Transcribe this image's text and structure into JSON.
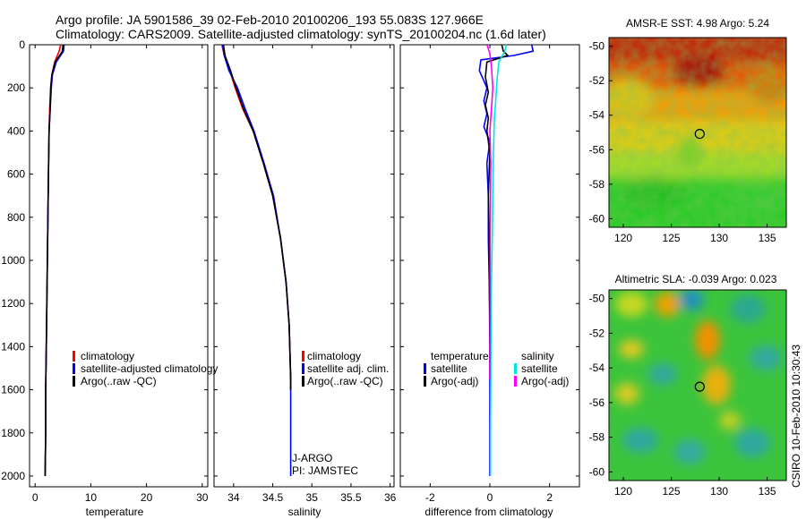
{
  "header": {
    "line1": "Argo profile: JA 5901586_39 02-Feb-2010 20100206_193 55.083S 127.966E",
    "line2": "Climatology: CARS2009. Satellite-adjusted climatology: synTS_20100204.nc (1.6d later)"
  },
  "side_stamp": "CSIRO 10-Feb-2010 10:30:43",
  "colors": {
    "climatology": "#ff0000",
    "satellite": "#0000ff",
    "argo": "#000000",
    "sal_satellite": "#00e5e5",
    "sal_argo": "#ff00ff"
  },
  "chart_data": [
    {
      "type": "line",
      "id": "temperature",
      "xlabel": "temperature",
      "xlim": [
        -1,
        31
      ],
      "ylim": [
        2050,
        0
      ],
      "xticks": [
        0,
        10,
        20,
        30
      ],
      "yticks": [
        0,
        200,
        400,
        600,
        800,
        1000,
        1200,
        1400,
        1600,
        1800,
        2000
      ],
      "legend": [
        "climatology",
        "satellite-adjusted climatology",
        "Argo(..raw -QC)"
      ],
      "series": [
        {
          "name": "climatology",
          "color": "#ff0000",
          "x": [
            4.6,
            4.3,
            3.5,
            3.0,
            2.8,
            2.6,
            2.5,
            2.4,
            2.3,
            2.2,
            2.1,
            2.0,
            1.9,
            1.9,
            1.8
          ],
          "y": [
            0,
            30,
            80,
            140,
            200,
            300,
            400,
            600,
            800,
            1000,
            1200,
            1400,
            1600,
            1800,
            2000
          ]
        },
        {
          "name": "satellite-adjusted climatology",
          "color": "#0000ff",
          "x": [
            5.2,
            5.1,
            3.8,
            3.1,
            2.9,
            2.7,
            2.5,
            2.4,
            2.3,
            2.2,
            2.1,
            2.0,
            1.9,
            1.9,
            1.8
          ],
          "y": [
            0,
            30,
            80,
            140,
            200,
            300,
            400,
            600,
            800,
            1000,
            1200,
            1400,
            1600,
            1800,
            2000
          ]
        },
        {
          "name": "Argo(..raw -QC)",
          "color": "#000000",
          "x": [
            5.0,
            4.9,
            3.6,
            3.0,
            2.8,
            2.7,
            2.5,
            2.4,
            2.3,
            2.2,
            2.1,
            2.0,
            1.9,
            1.9,
            1.8
          ],
          "y": [
            0,
            30,
            80,
            140,
            200,
            300,
            400,
            600,
            800,
            1000,
            1200,
            1400,
            1600,
            1800,
            2000
          ]
        }
      ]
    },
    {
      "type": "line",
      "id": "salinity",
      "xlabel": "salinity",
      "xlim": [
        33.75,
        36.05
      ],
      "ylim": [
        2050,
        0
      ],
      "xticks": [
        34,
        34.5,
        35,
        35.5,
        36
      ],
      "legend": [
        "climatology",
        "satellite adj. clim.",
        "Argo(..raw -QC)"
      ],
      "annotation": [
        "J-ARGO",
        "PI: JAMSTEC"
      ],
      "series": [
        {
          "name": "climatology",
          "color": "#ff0000",
          "x": [
            33.85,
            33.88,
            33.95,
            34.02,
            34.12,
            34.25,
            34.38,
            34.5,
            34.6,
            34.67,
            34.71,
            34.73,
            34.73
          ],
          "y": [
            0,
            50,
            120,
            200,
            300,
            400,
            550,
            700,
            900,
            1100,
            1300,
            1550,
            1600
          ]
        },
        {
          "name": "satellite adj. clim.",
          "color": "#0000ff",
          "x": [
            33.86,
            33.88,
            33.94,
            34.05,
            34.15,
            34.26,
            34.39,
            34.51,
            34.6,
            34.67,
            34.71,
            34.73,
            34.73,
            34.73
          ],
          "y": [
            0,
            50,
            120,
            200,
            300,
            400,
            550,
            700,
            900,
            1100,
            1300,
            1550,
            1800,
            2000
          ]
        },
        {
          "name": "Argo(..raw -QC)",
          "color": "#000000",
          "x": [
            33.87,
            33.89,
            33.96,
            34.03,
            34.13,
            34.25,
            34.38,
            34.5,
            34.6,
            34.67,
            34.71,
            34.73,
            34.73
          ],
          "y": [
            0,
            50,
            120,
            200,
            300,
            400,
            550,
            700,
            900,
            1100,
            1300,
            1550,
            1600
          ]
        }
      ]
    },
    {
      "type": "line",
      "id": "difference",
      "xlabel": "difference from climatology",
      "xlim": [
        -3,
        3
      ],
      "ylim": [
        2050,
        0
      ],
      "xticks": [
        -2,
        0,
        2
      ],
      "legend_left_title": "temperature",
      "legend_left": [
        "satellite",
        "Argo(-adj)"
      ],
      "legend_right_title": "salinity",
      "legend_right": [
        "satellite",
        "Argo(-adj)"
      ],
      "series": [
        {
          "name": "temperature satellite",
          "color": "#0000ff",
          "x": [
            1.4,
            1.45,
            0.8,
            -0.3,
            -0.35,
            -0.1,
            -0.2,
            -0.1,
            -0.2,
            0.0,
            -0.1,
            -0.05,
            -0.05,
            -0.02,
            0.0,
            0.0,
            0.0
          ],
          "y": [
            0,
            30,
            50,
            70,
            120,
            200,
            260,
            320,
            380,
            450,
            550,
            700,
            900,
            1100,
            1400,
            1700,
            2000
          ]
        },
        {
          "name": "temperature Argo(-adj)",
          "color": "#000000",
          "x": [
            0.4,
            0.45,
            0.6,
            -0.1,
            -0.15,
            -0.05,
            -0.15,
            -0.05,
            -0.1,
            0.0,
            -0.05,
            -0.02,
            0.0,
            0.0
          ],
          "y": [
            0,
            30,
            50,
            80,
            150,
            220,
            280,
            340,
            400,
            500,
            700,
            1000,
            1300,
            1550
          ]
        },
        {
          "name": "salinity satellite",
          "color": "#00e5e5",
          "x": [
            0.55,
            0.5,
            0.3,
            0.25,
            0.2,
            0.15,
            0.12,
            0.1,
            0.08,
            0.05,
            0.04,
            0.03,
            0.02,
            0.02
          ],
          "y": [
            0,
            30,
            80,
            150,
            250,
            350,
            500,
            700,
            900,
            1100,
            1300,
            1550,
            1800,
            2000
          ]
        },
        {
          "name": "salinity Argo(-adj)",
          "color": "#ff00ff",
          "x": [
            -0.1,
            0.0,
            0.05,
            0.1,
            0.05,
            0.0,
            0.03,
            0.02,
            0.01,
            0.01,
            0.0
          ],
          "y": [
            0,
            40,
            100,
            200,
            300,
            400,
            550,
            700,
            900,
            1200,
            1550
          ]
        }
      ]
    },
    {
      "type": "heatmap",
      "id": "sst",
      "title": "AMSR-E SST: 4.98  Argo: 5.24",
      "xlim": [
        118.5,
        137
      ],
      "ylim": [
        -60.5,
        -49.5
      ],
      "xticks": [
        120,
        125,
        130,
        135
      ],
      "yticks": [
        -50,
        -52,
        -54,
        -56,
        -58,
        -60
      ],
      "marker": {
        "lon": 127.966,
        "lat": -55.083
      }
    },
    {
      "type": "heatmap",
      "id": "sla",
      "title": "Altimetric SLA: -0.039  Argo: 0.023",
      "xlim": [
        118.5,
        137
      ],
      "ylim": [
        -60.5,
        -49.5
      ],
      "xticks": [
        120,
        125,
        130,
        135
      ],
      "yticks": [
        -50,
        -52,
        -54,
        -56,
        -58,
        -60
      ],
      "marker": {
        "lon": 127.966,
        "lat": -55.083
      }
    }
  ]
}
